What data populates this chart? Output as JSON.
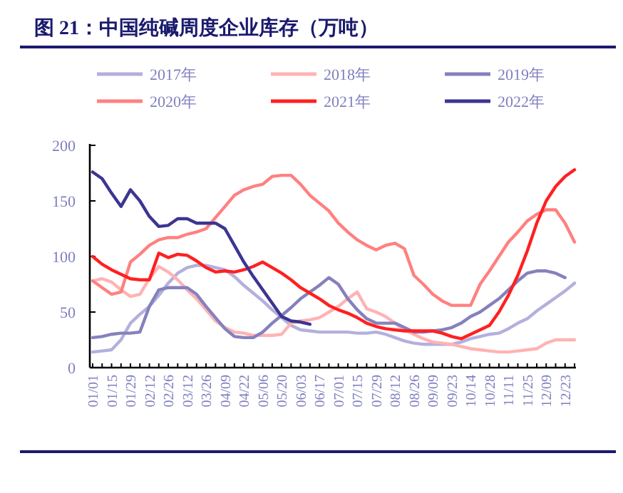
{
  "chart_data": {
    "type": "line",
    "title": "图 21：中国纯碱周度企业库存（万吨）",
    "categories": [
      "01/01",
      null,
      "01/15",
      null,
      "01/29",
      null,
      "02/12",
      null,
      "02/26",
      null,
      "03/12",
      null,
      "03/26",
      null,
      "04/09",
      null,
      "04/22",
      null,
      "05/06",
      null,
      "05/20",
      null,
      "06/03",
      null,
      "06/17",
      null,
      "07/01",
      null,
      "07/15",
      null,
      "07/29",
      null,
      "08/12",
      null,
      "08/26",
      null,
      "09/09",
      null,
      "09/23",
      null,
      "10/14",
      null,
      "10/28",
      null,
      "11/11",
      null,
      "11/25",
      null,
      "12/09",
      null,
      "12/23",
      null
    ],
    "series": [
      {
        "name": "2017年",
        "color": "#b3b0dd",
        "values": [
          14,
          15,
          16,
          25,
          40,
          48,
          55,
          65,
          76,
          85,
          90,
          92,
          92,
          90,
          88,
          82,
          74,
          67,
          60,
          52,
          45,
          38,
          34,
          33,
          32,
          32,
          32,
          32,
          31,
          31,
          32,
          30,
          27,
          24,
          22,
          21,
          21,
          21,
          21,
          23,
          26,
          28,
          30,
          31,
          35,
          40,
          44,
          51,
          57,
          63,
          69,
          76
        ]
      },
      {
        "name": "2018年",
        "color": "#ffb3b3",
        "values": [
          78,
          80,
          77,
          70,
          64,
          66,
          80,
          91,
          86,
          79,
          70,
          62,
          52,
          42,
          36,
          32,
          31,
          29,
          29,
          29,
          30,
          40,
          42,
          43,
          45,
          50,
          55,
          62,
          68,
          53,
          50,
          46,
          40,
          34,
          30,
          26,
          23,
          22,
          21,
          19,
          17,
          16,
          15,
          14,
          14,
          15,
          16,
          17,
          22,
          25,
          25,
          25
        ]
      },
      {
        "name": "2019年",
        "color": "#8581bd",
        "values": [
          27,
          28,
          30,
          31,
          31,
          32,
          55,
          70,
          72,
          72,
          72,
          66,
          55,
          45,
          35,
          28,
          27,
          27,
          32,
          40,
          47,
          54,
          62,
          68,
          74,
          81,
          75,
          62,
          52,
          44,
          40,
          40,
          40,
          36,
          32,
          32,
          33,
          34,
          36,
          40,
          46,
          50,
          56,
          62,
          70,
          78,
          85,
          87,
          87,
          85,
          81,
          null
        ]
      },
      {
        "name": "2020年",
        "color": "#ff8080",
        "values": [
          78,
          72,
          66,
          68,
          95,
          102,
          110,
          115,
          117,
          117,
          120,
          122,
          125,
          135,
          145,
          155,
          160,
          163,
          165,
          172,
          173,
          173,
          165,
          155,
          148,
          141,
          130,
          122,
          115,
          110,
          106,
          110,
          112,
          107,
          83,
          75,
          66,
          60,
          56,
          56,
          56,
          75,
          87,
          100,
          113,
          122,
          132,
          138,
          142,
          142,
          130,
          113
        ]
      },
      {
        "name": "2021年",
        "color": "#ff2020",
        "values": [
          100,
          93,
          88,
          84,
          80,
          79,
          79,
          103,
          99,
          102,
          101,
          96,
          90,
          86,
          87,
          86,
          88,
          91,
          95,
          90,
          85,
          79,
          72,
          67,
          62,
          56,
          52,
          49,
          45,
          40,
          37,
          35,
          34,
          33,
          33,
          33,
          33,
          31,
          28,
          26,
          30,
          34,
          38,
          50,
          65,
          83,
          105,
          130,
          150,
          163,
          172,
          178
        ]
      },
      {
        "name": "2022年",
        "color": "#3c3591",
        "values": [
          176,
          170,
          157,
          145,
          160,
          150,
          136,
          127,
          128,
          134,
          134,
          130,
          130,
          130,
          125,
          110,
          95,
          82,
          70,
          58,
          46,
          42,
          41,
          39,
          null,
          null,
          null,
          null,
          null,
          null,
          null,
          null,
          null,
          null,
          null,
          null,
          null,
          null,
          null,
          null,
          null,
          null,
          null,
          null,
          null,
          null,
          null,
          null,
          null,
          null,
          null,
          null
        ]
      }
    ],
    "ylim": [
      0,
      200
    ],
    "yticks": [
      0,
      50,
      100,
      150,
      200
    ],
    "legend": "top",
    "grid": false
  }
}
